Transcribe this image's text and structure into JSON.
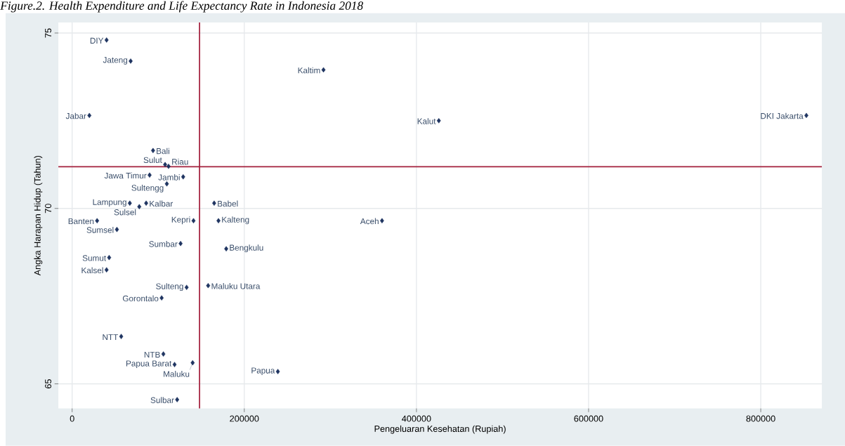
{
  "chart_data": {
    "type": "scatter",
    "title": "Figure.2. Health Expenditure and Life Expectancy Rate in Indonesia 2018",
    "xlabel": "Pengeluaran Kesehatan (Rupiah)",
    "ylabel": "Angka Harapan Hidup (Tahun)",
    "xlim": [
      -16000,
      871000
    ],
    "ylim": [
      64.3,
      75.3
    ],
    "xticks": [
      0,
      200000,
      400000,
      600000,
      800000
    ],
    "yticks": [
      65,
      70,
      75
    ],
    "grid": true,
    "marker": "diamond",
    "series": [
      {
        "color": "#1f3461",
        "x": [
          40000,
          68000,
          292000,
          20000,
          426000,
          853000,
          94000,
          108000,
          112000,
          90000,
          129000,
          110000,
          67000,
          86000,
          78000,
          165000,
          29000,
          141000,
          170000,
          360000,
          52000,
          126000,
          179000,
          43000,
          40000,
          133000,
          158000,
          104000,
          57000,
          106000,
          119000,
          140000,
          239000,
          122000
        ],
        "values": [
          74.8,
          74.2,
          73.95,
          72.65,
          72.5,
          72.65,
          71.65,
          71.25,
          71.2,
          70.95,
          70.9,
          70.7,
          70.15,
          70.15,
          70.05,
          70.15,
          69.65,
          69.65,
          69.65,
          69.65,
          69.4,
          69.0,
          68.85,
          68.6,
          68.25,
          67.75,
          67.8,
          67.45,
          66.35,
          65.85,
          65.55,
          65.6,
          65.35,
          64.55
        ]
      }
    ],
    "ref_lines": [
      {
        "axis": "x",
        "value": 148000,
        "color": "#a3203c"
      },
      {
        "axis": "y",
        "value": 71.19,
        "color": "#a3203c"
      }
    ],
    "annotations": [
      {
        "text": "DIY",
        "x": 40000,
        "y": 74.8
      },
      {
        "text": "Jateng",
        "x": 68000,
        "y": 74.2
      },
      {
        "text": "Kaltim",
        "x": 292000,
        "y": 73.95
      },
      {
        "text": "Jabar",
        "x": 20000,
        "y": 72.65
      },
      {
        "text": "Kalut",
        "x": 426000,
        "y": 72.5
      },
      {
        "text": "DKI Jakarta",
        "x": 853000,
        "y": 72.65
      },
      {
        "text": "Bali",
        "x": 94000,
        "y": 71.65
      },
      {
        "text": "Sulut",
        "x": 108000,
        "y": 71.25
      },
      {
        "text": "Riau",
        "x": 112000,
        "y": 71.2
      },
      {
        "text": "Jawa Timur",
        "x": 90000,
        "y": 70.95
      },
      {
        "text": "Jambi",
        "x": 129000,
        "y": 70.9
      },
      {
        "text": "Sultengg",
        "x": 110000,
        "y": 70.7
      },
      {
        "text": "Lampung",
        "x": 67000,
        "y": 70.15
      },
      {
        "text": "Kalbar",
        "x": 86000,
        "y": 70.15
      },
      {
        "text": "Sulsel",
        "x": 78000,
        "y": 70.05
      },
      {
        "text": "Babel",
        "x": 165000,
        "y": 70.15
      },
      {
        "text": "Banten",
        "x": 29000,
        "y": 69.65
      },
      {
        "text": "Kepri",
        "x": 141000,
        "y": 69.65
      },
      {
        "text": "Kalteng",
        "x": 170000,
        "y": 69.65
      },
      {
        "text": "Aceh",
        "x": 360000,
        "y": 69.65
      },
      {
        "text": "Sumsel",
        "x": 52000,
        "y": 69.4
      },
      {
        "text": "Sumbar",
        "x": 126000,
        "y": 69.0
      },
      {
        "text": "Bengkulu",
        "x": 179000,
        "y": 68.85
      },
      {
        "text": "Sumut",
        "x": 43000,
        "y": 68.6
      },
      {
        "text": "Kalsel",
        "x": 40000,
        "y": 68.25
      },
      {
        "text": "Sulteng",
        "x": 133000,
        "y": 67.75
      },
      {
        "text": "Maluku Utara",
        "x": 158000,
        "y": 67.8
      },
      {
        "text": "Gorontalo",
        "x": 104000,
        "y": 67.45
      },
      {
        "text": "NTT",
        "x": 57000,
        "y": 66.35
      },
      {
        "text": "NTB",
        "x": 106000,
        "y": 65.85
      },
      {
        "text": "Papua Barat",
        "x": 119000,
        "y": 65.55
      },
      {
        "text": "Maluku",
        "x": 140000,
        "y": 65.6
      },
      {
        "text": "Papua",
        "x": 239000,
        "y": 65.35
      },
      {
        "text": "Sulbar",
        "x": 122000,
        "y": 64.55
      }
    ]
  }
}
